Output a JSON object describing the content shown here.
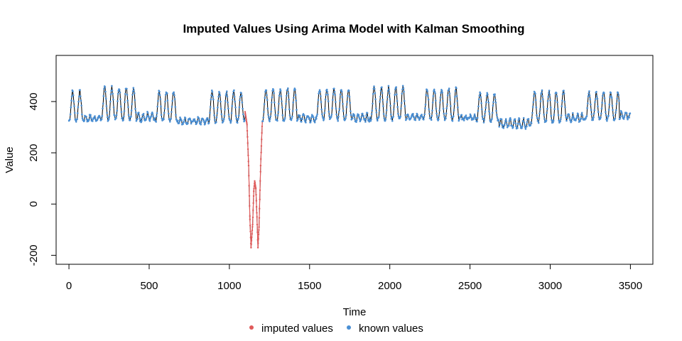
{
  "chart_data": {
    "type": "line",
    "title": "Imputed Values Using Arima Model with Kalman Smoothing",
    "xlabel": "Time",
    "ylabel": "Value",
    "xlim": [
      -80,
      3640
    ],
    "ylim": [
      -235,
      580
    ],
    "xticks": [
      0,
      500,
      1000,
      1500,
      2000,
      2500,
      3000,
      3500
    ],
    "yticks": [
      -200,
      0,
      200,
      400
    ],
    "legend": {
      "position": "bottom-center",
      "entries": [
        {
          "label": "imputed values",
          "color": "#e05a5a"
        },
        {
          "label": "known values",
          "color": "#4a8fd4"
        }
      ]
    },
    "colors": {
      "line": "#000000",
      "imputed": "#e05a5a",
      "known": "#4a8fd4"
    },
    "series": [
      {
        "role": "imputed",
        "x": [
          1098,
          1110,
          1120,
          1128,
          1135,
          1145,
          1152,
          1158,
          1165,
          1172,
          1178,
          1185,
          1195,
          1205
        ],
        "y": [
          360,
          310,
          150,
          -60,
          -170,
          -80,
          50,
          90,
          60,
          -50,
          -170,
          -90,
          150,
          320
        ]
      }
    ],
    "known_profile": {
      "x_range": [
        0,
        3500
      ],
      "gap": [
        1098,
        1205
      ],
      "segments": [
        {
          "from": 0,
          "to": 90,
          "high": 440,
          "low": 325
        },
        {
          "from": 90,
          "to": 200,
          "high": 345,
          "low": 325
        },
        {
          "from": 200,
          "to": 420,
          "high": 455,
          "low": 330
        },
        {
          "from": 420,
          "to": 540,
          "high": 355,
          "low": 325
        },
        {
          "from": 540,
          "to": 680,
          "high": 440,
          "low": 325
        },
        {
          "from": 680,
          "to": 870,
          "high": 335,
          "low": 315
        },
        {
          "from": 870,
          "to": 1098,
          "high": 440,
          "low": 320
        },
        {
          "from": 1205,
          "to": 1420,
          "high": 450,
          "low": 325
        },
        {
          "from": 1420,
          "to": 1540,
          "high": 350,
          "low": 325
        },
        {
          "from": 1540,
          "to": 1760,
          "high": 450,
          "low": 330
        },
        {
          "from": 1760,
          "to": 1880,
          "high": 350,
          "low": 325
        },
        {
          "from": 1880,
          "to": 2100,
          "high": 455,
          "low": 330
        },
        {
          "from": 2100,
          "to": 2210,
          "high": 350,
          "low": 330
        },
        {
          "from": 2210,
          "to": 2430,
          "high": 450,
          "low": 330
        },
        {
          "from": 2430,
          "to": 2540,
          "high": 345,
          "low": 330
        },
        {
          "from": 2540,
          "to": 2680,
          "high": 430,
          "low": 325
        },
        {
          "from": 2680,
          "to": 2880,
          "high": 330,
          "low": 300
        },
        {
          "from": 2880,
          "to": 3100,
          "high": 440,
          "low": 320
        },
        {
          "from": 3100,
          "to": 3220,
          "high": 350,
          "low": 325
        },
        {
          "from": 3220,
          "to": 3430,
          "high": 435,
          "low": 330
        },
        {
          "from": 3430,
          "to": 3500,
          "high": 360,
          "low": 335
        }
      ]
    }
  }
}
